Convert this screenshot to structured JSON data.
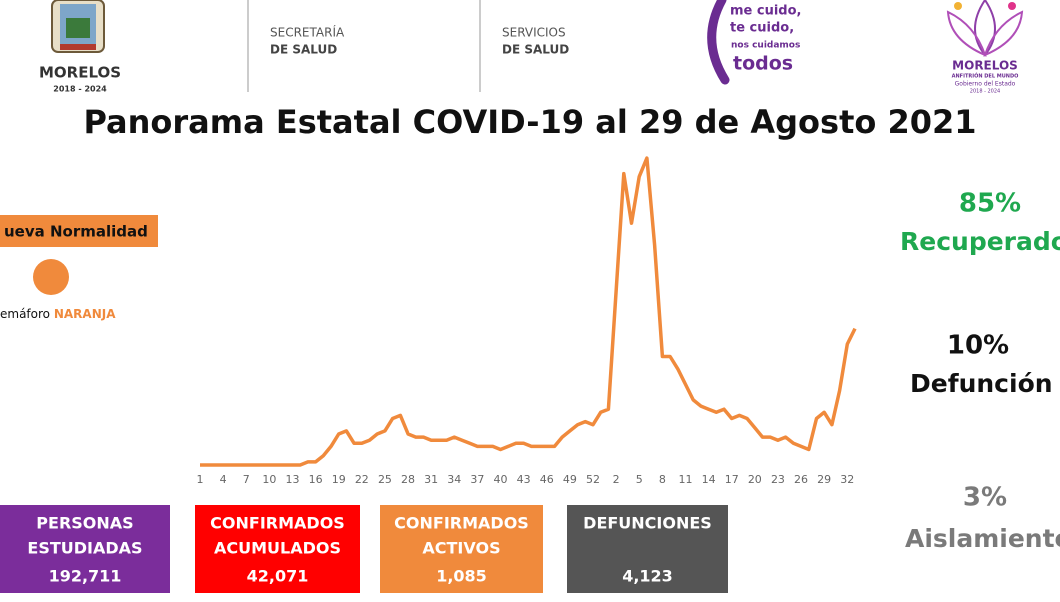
{
  "header": {
    "left_logo": {
      "name": "MORELOS",
      "years": "2018 - 2024"
    },
    "secretaria": [
      "SECRETARÍA",
      "DE SALUD"
    ],
    "servicios": [
      "SERVICIOS",
      "DE SALUD"
    ],
    "campaign": [
      "me cuido,",
      "te cuido,",
      "nos cuidamos",
      "todos"
    ],
    "right_logo": {
      "name": "MORELOS",
      "tagline": "ANFITRIÓN DEL MUNDO",
      "gov": "Gobierno del Estado",
      "years": "2018 - 2024"
    }
  },
  "title": "Panorama Estatal COVID-19 al 29 de Agosto 2021",
  "status": {
    "label": "ueva Normalidad",
    "semaforo": "emáforo",
    "semaforo_color": "NARANJA",
    "color": "#f08a3c"
  },
  "chart_data": {
    "type": "line",
    "categories": [
      "1",
      null,
      null,
      "4",
      null,
      null,
      "7",
      null,
      null,
      "10",
      null,
      null,
      "13",
      null,
      null,
      "16",
      null,
      null,
      "19",
      null,
      null,
      "22",
      null,
      null,
      "25",
      null,
      null,
      "28",
      null,
      null,
      "31",
      null,
      null,
      "34",
      null,
      null,
      "37",
      null,
      null,
      "40",
      null,
      null,
      "43",
      null,
      null,
      "46",
      null,
      null,
      "49",
      null,
      null,
      "52",
      null,
      null,
      "2",
      null,
      null,
      "5",
      null,
      null,
      "8",
      null,
      null,
      "11",
      null,
      null,
      "14",
      null,
      null,
      "17",
      null,
      null,
      "20",
      null,
      null,
      "23",
      null,
      null,
      "26",
      null,
      null,
      "29",
      null,
      null,
      "32",
      null
    ],
    "values": [
      0,
      0,
      0,
      0,
      0,
      0,
      0,
      0,
      0,
      0,
      0,
      0,
      0,
      0,
      1,
      1,
      3,
      6,
      10,
      11,
      7,
      7,
      8,
      10,
      11,
      15,
      16,
      10,
      9,
      9,
      8,
      8,
      8,
      9,
      8,
      7,
      6,
      6,
      6,
      5,
      6,
      7,
      7,
      6,
      6,
      6,
      6,
      9,
      11,
      13,
      14,
      13,
      17,
      18,
      56,
      94,
      78,
      93,
      99,
      71,
      35,
      35,
      31,
      26,
      21,
      19,
      18,
      17,
      18,
      15,
      16,
      15,
      12,
      9,
      9,
      8,
      9,
      7,
      6,
      5,
      15,
      17,
      13,
      24,
      39,
      44
    ],
    "color": "#f08a3c",
    "ylim": [
      0,
      100
    ]
  },
  "rates": [
    {
      "value": "85%",
      "label": "Recuperado",
      "color": "#1fa84f"
    },
    {
      "value": "10%",
      "label": "Defunción",
      "color": "#111111"
    },
    {
      "value": "3%",
      "label": "Aislamiento",
      "color": "#7a7a7a"
    }
  ],
  "stats": [
    {
      "label": [
        "PERSONAS",
        "ESTUDIADAS"
      ],
      "value": "192,711",
      "color": "#7b2d9b"
    },
    {
      "label": [
        "CONFIRMADOS",
        "ACUMULADOS"
      ],
      "value": "42,071",
      "color": "#ff0000"
    },
    {
      "label": [
        "CONFIRMADOS",
        "ACTIVOS"
      ],
      "value": "1,085",
      "color": "#f08a3c"
    },
    {
      "label": [
        "DEFUNCIONES"
      ],
      "value": "4,123",
      "color": "#555555"
    }
  ]
}
